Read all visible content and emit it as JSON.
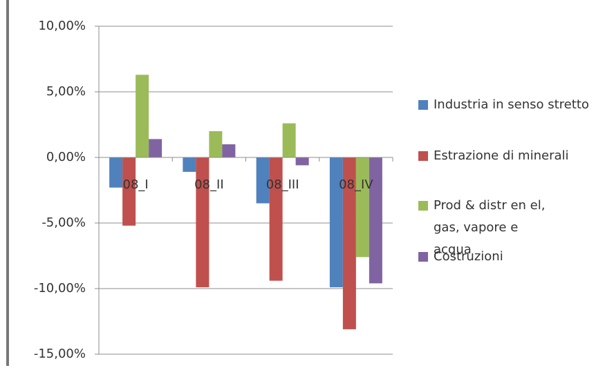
{
  "chart_data": {
    "type": "bar",
    "categories": [
      "08_I",
      "08_II",
      "08_III",
      "08_IV"
    ],
    "series": [
      {
        "name": "Industria in senso stretto",
        "color": "#4f81bd",
        "values": [
          -2.3,
          -1.1,
          -3.5,
          -9.9
        ]
      },
      {
        "name": "Estrazione di minerali",
        "color": "#c0504d",
        "values": [
          -5.2,
          -9.9,
          -9.4,
          -13.1
        ]
      },
      {
        "name": "Prod & distr en el, gas, vapore e acqua",
        "color": "#9bbb59",
        "values": [
          6.3,
          2.0,
          2.6,
          -7.6
        ]
      },
      {
        "name": "Costruzioni",
        "color": "#8064a2",
        "values": [
          1.4,
          1.0,
          -0.6,
          -9.6
        ]
      }
    ],
    "ylim": [
      -15,
      10
    ],
    "yticks": [
      {
        "value": -15,
        "label": "-15,00%"
      },
      {
        "value": -10,
        "label": "-10,00%"
      },
      {
        "value": -5,
        "label": "-5,00%"
      },
      {
        "value": 0,
        "label": "0,00%"
      },
      {
        "value": 5,
        "label": "5,00%"
      },
      {
        "value": 10,
        "label": "10,00%"
      }
    ],
    "grid": true,
    "legend": "right"
  }
}
